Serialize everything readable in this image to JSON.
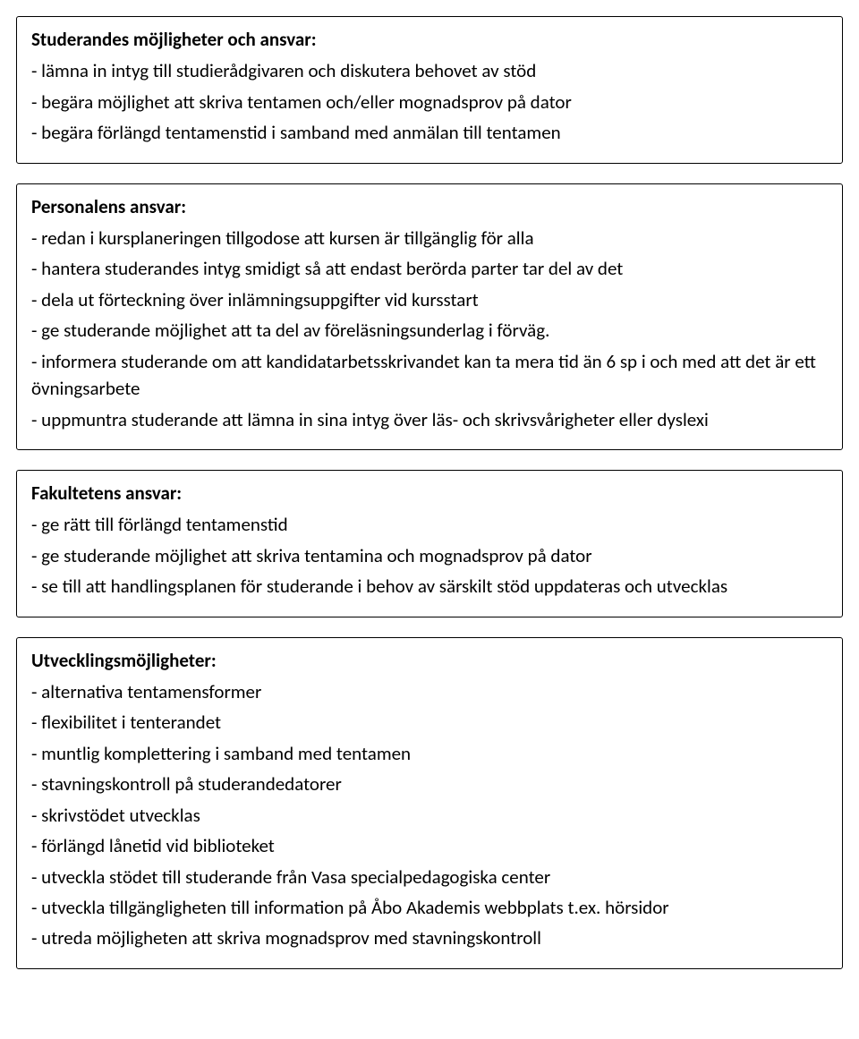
{
  "document": {
    "text_color": "#000000",
    "background_color": "#ffffff",
    "border_color": "#000000",
    "font_family": "Gill Sans",
    "heading_fontsize": 21,
    "body_fontsize": 21
  },
  "sections": [
    {
      "heading": "Studerandes möjligheter och ansvar:",
      "items": [
        "- lämna in intyg till studierådgivaren och diskutera behovet av stöd",
        "- begära möjlighet att skriva tentamen och/eller mognadsprov på dator",
        "- begära förlängd tentamenstid i samband med anmälan till tentamen"
      ]
    },
    {
      "heading": "Personalens ansvar:",
      "items": [
        "- redan i kursplaneringen tillgodose att kursen är tillgänglig för alla",
        "- hantera studerandes intyg smidigt så att endast berörda parter tar del av det",
        "- dela ut förteckning över inlämningsuppgifter vid kursstart",
        "- ge studerande möjlighet att ta del av föreläsningsunderlag i förväg.",
        "- informera studerande om att kandidatarbetsskrivandet kan ta mera tid än 6 sp i och med att det är ett övningsarbete",
        "- uppmuntra studerande att lämna in sina intyg över läs- och skrivsvårigheter eller dyslexi"
      ]
    },
    {
      "heading": "Fakultetens ansvar:",
      "items": [
        "- ge rätt till förlängd tentamenstid",
        "- ge studerande möjlighet att skriva tentamina och mognadsprov på dator",
        "- se till att handlingsplanen för studerande i behov av särskilt stöd uppdateras och utvecklas"
      ]
    },
    {
      "heading": "Utvecklingsmöjligheter:",
      "items": [
        "- alternativa tentamensformer",
        "- flexibilitet i tenterandet",
        "- muntlig komplettering i samband med tentamen",
        "- stavningskontroll på studerandedatorer",
        "- skrivstödet utvecklas",
        "- förlängd lånetid vid biblioteket",
        "- utveckla stödet till studerande från Vasa specialpedagogiska center",
        "- utveckla tillgängligheten till information på Åbo Akademis webbplats t.ex. hörsidor",
        "- utreda möjligheten att skriva mognadsprov med stavningskontroll"
      ]
    }
  ]
}
